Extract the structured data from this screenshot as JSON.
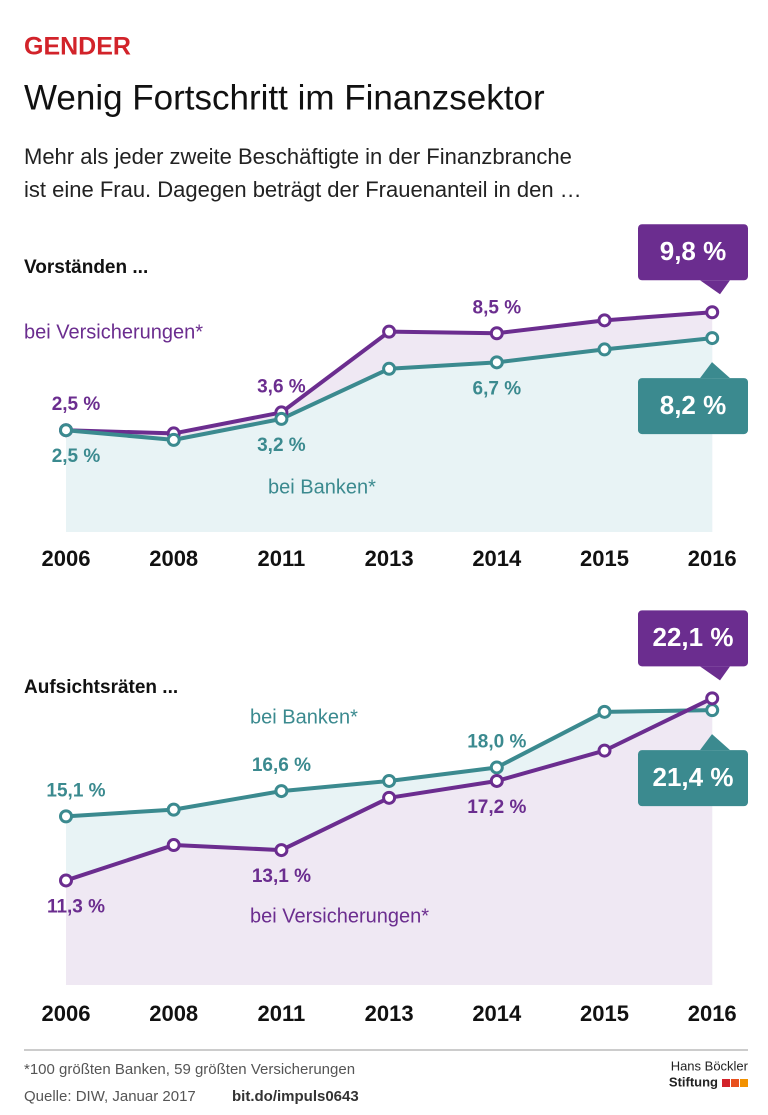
{
  "header": {
    "kicker": "GENDER",
    "title": "Wenig Fortschritt im Finanzsektor",
    "subtitle_1": "Mehr als jeder zweite Beschäftigte in der Finanzbranche",
    "subtitle_2": "ist eine Frau. Dagegen beträgt der Frauenanteil in den …"
  },
  "chart_data": [
    {
      "type": "line",
      "title": "Vorständen ...",
      "categories": [
        "2006",
        "2008",
        "2011",
        "2013",
        "2014",
        "2015",
        "2016"
      ],
      "series": [
        {
          "name": "bei Versicherungen*",
          "color": "#6b2d8f",
          "area_color": "#efe8f3",
          "values": [
            2.5,
            2.3,
            3.6,
            8.6,
            8.5,
            9.3,
            9.8
          ],
          "value_labels": [
            "2,5 %",
            null,
            "3,6 %",
            null,
            "8,5 %",
            null,
            "9,8 %"
          ]
        },
        {
          "name": "bei Banken*",
          "color": "#3b8a8f",
          "area_color": "#e8f3f5",
          "values": [
            2.5,
            1.9,
            3.2,
            6.3,
            6.7,
            7.5,
            8.2
          ],
          "value_labels": [
            "2,5 %",
            null,
            "3,2 %",
            null,
            "6,7 %",
            null,
            "8,2 %"
          ]
        }
      ],
      "ylim": [
        -3.8,
        12
      ]
    },
    {
      "type": "line",
      "title": "Aufsichtsräten ...",
      "categories": [
        "2006",
        "2008",
        "2011",
        "2013",
        "2014",
        "2015",
        "2016"
      ],
      "series": [
        {
          "name": "bei Banken*",
          "color": "#3b8a8f",
          "area_color": "#e8f3f5",
          "values": [
            15.1,
            15.5,
            16.6,
            17.2,
            18.0,
            21.3,
            21.4
          ],
          "value_labels": [
            "15,1 %",
            null,
            "16,6 %",
            null,
            "18,0 %",
            null,
            "21,4 %"
          ]
        },
        {
          "name": "bei Versicherungen*",
          "color": "#6b2d8f",
          "area_color": "#efe8f3",
          "values": [
            11.3,
            13.4,
            13.1,
            16.2,
            17.2,
            19.0,
            22.1
          ],
          "value_labels": [
            "11,3 %",
            null,
            "13,1 %",
            null,
            "17,2 %",
            null,
            "22,1 %"
          ]
        }
      ],
      "ylim": [
        5.1,
        24
      ]
    }
  ],
  "footer": {
    "note": "*100 größten Banken, 59 größten Versicherungen",
    "source": "Quelle: DIW, Januar 2017",
    "link": "bit.do/impuls0643",
    "logo_1": "Hans Böckler",
    "logo_2": "Stiftung"
  }
}
